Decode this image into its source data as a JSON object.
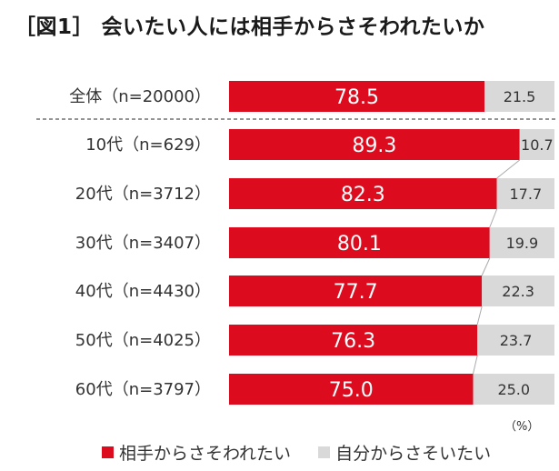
{
  "title": "［図1］ 会いたい人には相手からさそわれたいか",
  "chart_data": {
    "type": "bar",
    "orientation": "horizontal",
    "stacked": true,
    "percent_stacked": true,
    "categories": [
      "全体（n=20000）",
      "10代（n=629）",
      "20代（n=3712）",
      "30代（n=3407）",
      "40代（n=4430）",
      "50代（n=4025）",
      "60代（n=3797）"
    ],
    "series": [
      {
        "name": "相手からさそわれたい",
        "color": "#dd0b1e",
        "values": [
          78.5,
          89.3,
          82.3,
          80.1,
          77.7,
          76.3,
          75.0
        ]
      },
      {
        "name": "自分からさそいたい",
        "color": "#d9d9d9",
        "values": [
          21.5,
          10.7,
          17.7,
          19.9,
          22.3,
          23.7,
          25.0
        ]
      }
    ],
    "value_labels": [
      [
        "78.5",
        "89.3",
        "82.3",
        "80.1",
        "77.7",
        "76.3",
        "75.0"
      ],
      [
        "21.5",
        "10.7",
        "17.7",
        "19.9",
        "22.3",
        "23.7",
        "25.0"
      ]
    ],
    "unit": "（%）",
    "xlim": [
      0,
      100
    ],
    "grid": false,
    "legend_position": "bottom"
  }
}
